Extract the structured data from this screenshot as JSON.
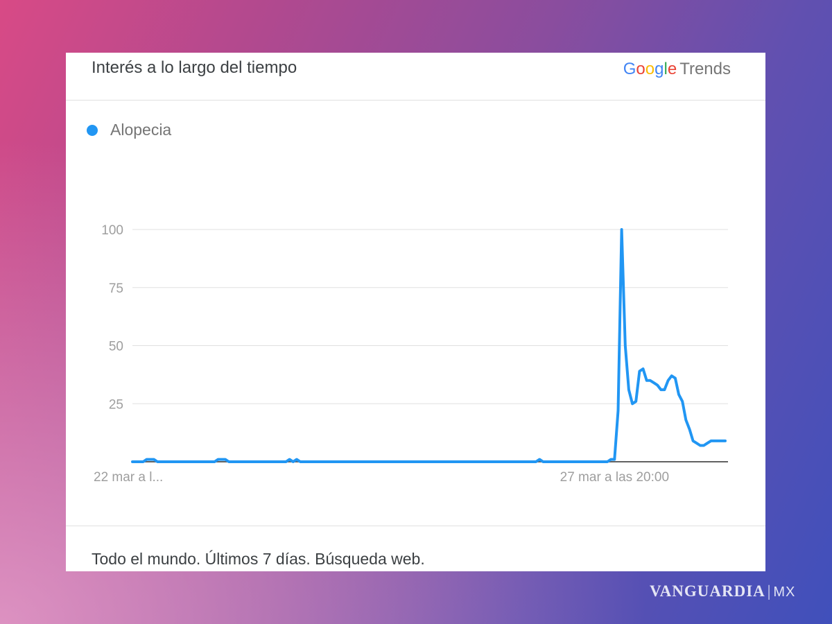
{
  "card": {
    "title": "Interés a lo largo del tiempo",
    "brand": {
      "google": "Google",
      "trends": "Trends"
    },
    "footer": "Todo el mundo. Últimos 7 días. Búsqueda web."
  },
  "watermark": {
    "main": "VANGUARDIA",
    "sep": "|",
    "suffix": "MX"
  },
  "colors": {
    "series": "#2196f3",
    "grid": "#e0e0e0",
    "axis": "#9e9e9e"
  },
  "chart_data": {
    "type": "line",
    "legend_position": "top-left",
    "grid": true,
    "ylim": [
      0,
      100
    ],
    "y_ticks": [
      25,
      50,
      75,
      100
    ],
    "x_tick_labels": [
      {
        "label": "22 mar a l...",
        "index": 0
      },
      {
        "label": "27 mar a las 20:00",
        "index": 135
      }
    ],
    "series": [
      {
        "name": "Alopecia",
        "values": [
          0,
          0,
          0,
          0,
          1,
          1,
          1,
          0,
          0,
          0,
          0,
          0,
          0,
          0,
          0,
          0,
          0,
          0,
          0,
          0,
          0,
          0,
          0,
          0,
          1,
          1,
          1,
          0,
          0,
          0,
          0,
          0,
          0,
          0,
          0,
          0,
          0,
          0,
          0,
          0,
          0,
          0,
          0,
          0,
          1,
          0,
          1,
          0,
          0,
          0,
          0,
          0,
          0,
          0,
          0,
          0,
          0,
          0,
          0,
          0,
          0,
          0,
          0,
          0,
          0,
          0,
          0,
          0,
          0,
          0,
          0,
          0,
          0,
          0,
          0,
          0,
          0,
          0,
          0,
          0,
          0,
          0,
          0,
          0,
          0,
          0,
          0,
          0,
          0,
          0,
          0,
          0,
          0,
          0,
          0,
          0,
          0,
          0,
          0,
          0,
          0,
          0,
          0,
          0,
          0,
          0,
          0,
          0,
          0,
          0,
          0,
          0,
          0,
          0,
          1,
          0,
          0,
          0,
          0,
          0,
          0,
          0,
          0,
          0,
          0,
          0,
          0,
          0,
          0,
          0,
          0,
          0,
          0,
          0,
          1,
          1,
          22,
          100,
          50,
          31,
          25,
          26,
          39,
          40,
          35,
          35,
          34,
          33,
          31,
          31,
          35,
          37,
          36,
          29,
          26,
          18,
          14,
          9,
          8,
          7,
          7,
          8,
          9,
          9,
          9,
          9,
          9
        ]
      }
    ]
  }
}
